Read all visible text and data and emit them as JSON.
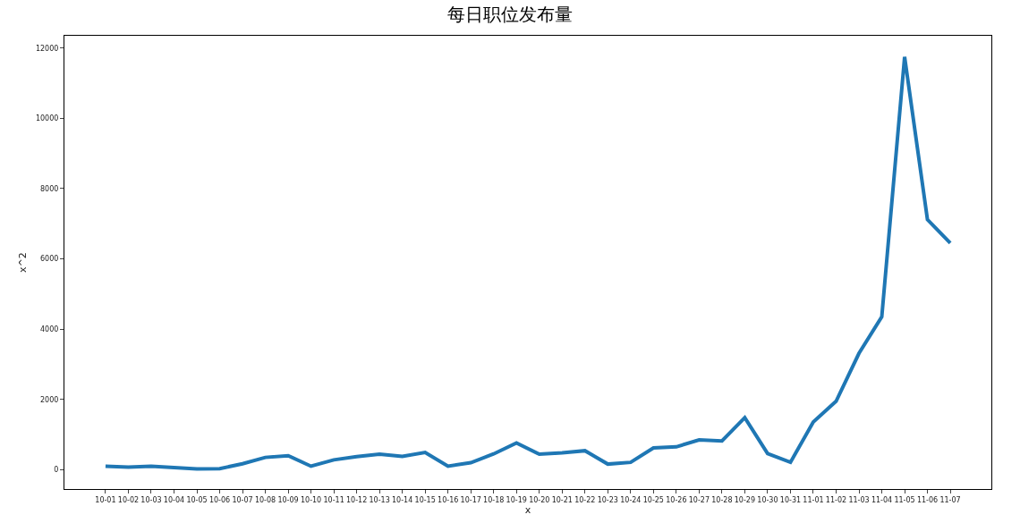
{
  "chart_data": {
    "type": "line",
    "title": "每日职位发布量",
    "xlabel": "x",
    "ylabel": "x^2",
    "categories": [
      "10-01",
      "10-02",
      "10-03",
      "10-04",
      "10-05",
      "10-06",
      "10-07",
      "10-08",
      "10-09",
      "10-10",
      "10-11",
      "10-12",
      "10-13",
      "10-14",
      "10-15",
      "10-16",
      "10-17",
      "10-18",
      "10-19",
      "10-20",
      "10-21",
      "10-22",
      "10-23",
      "10-24",
      "10-25",
      "10-26",
      "10-27",
      "10-28",
      "10-29",
      "10-30",
      "10-31",
      "11-01",
      "11-02",
      "11-03",
      "11-04",
      "11-05",
      "11-06",
      "11-07"
    ],
    "series": [
      {
        "color": "#1f77b4",
        "values": [
          100,
          75,
          100,
          60,
          20,
          30,
          170,
          350,
          400,
          100,
          280,
          370,
          440,
          380,
          490,
          100,
          200,
          450,
          760,
          440,
          480,
          540,
          160,
          210,
          620,
          650,
          850,
          820,
          1480,
          460,
          210,
          1360,
          1950,
          3310,
          4350,
          11750,
          7120,
          6450
        ]
      }
    ],
    "ylim": [
      -550,
      12350
    ],
    "yticks": [
      0,
      2000,
      4000,
      6000,
      8000,
      10000,
      12000
    ],
    "marker": "none",
    "line_style": "solid"
  }
}
